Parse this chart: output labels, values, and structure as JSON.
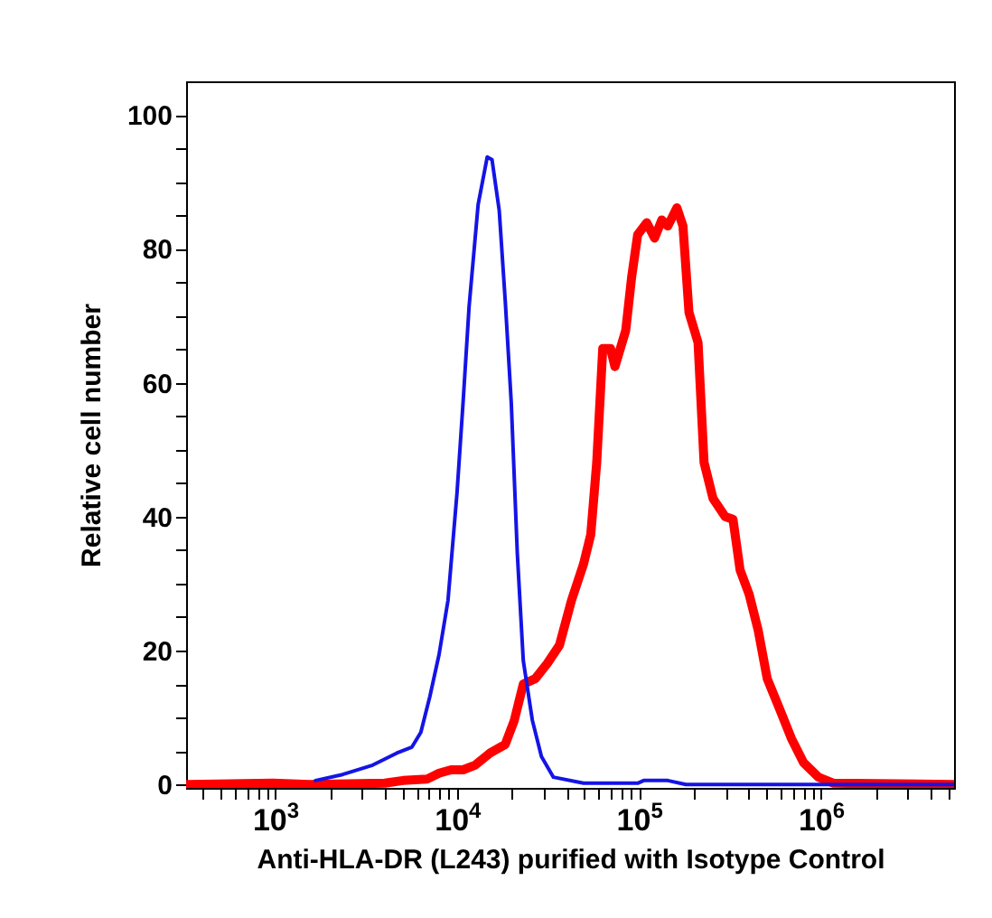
{
  "chart_data": {
    "type": "line",
    "xlabel": "Anti-HLA-DR (L243) purified with Isotype Control",
    "ylabel": "Relative cell number",
    "log": "x",
    "grid": false,
    "legend": false,
    "marker": "none",
    "line_style": "solid",
    "xlim": [
      324,
      5400000
    ],
    "ylim": [
      -0.5,
      105
    ],
    "xticks": [
      {
        "value": 400,
        "label": null
      },
      {
        "value": 500,
        "label": null
      },
      {
        "value": 600,
        "label": null
      },
      {
        "value": 700,
        "label": null
      },
      {
        "value": 800,
        "label": null
      },
      {
        "value": 900,
        "label": null
      },
      {
        "value": 1000,
        "label": "10$^{3}$"
      },
      {
        "value": 2000,
        "label": null
      },
      {
        "value": 3000,
        "label": null
      },
      {
        "value": 4000,
        "label": null
      },
      {
        "value": 5000,
        "label": null
      },
      {
        "value": 6000,
        "label": null
      },
      {
        "value": 7000,
        "label": null
      },
      {
        "value": 8000,
        "label": null
      },
      {
        "value": 9000,
        "label": null
      },
      {
        "value": 10000,
        "label": "10$^{4}$"
      },
      {
        "value": 20000,
        "label": null
      },
      {
        "value": 30000,
        "label": null
      },
      {
        "value": 40000,
        "label": null
      },
      {
        "value": 50000,
        "label": null
      },
      {
        "value": 60000,
        "label": null
      },
      {
        "value": 70000,
        "label": null
      },
      {
        "value": 80000,
        "label": null
      },
      {
        "value": 90000,
        "label": null
      },
      {
        "value": 100000,
        "label": "10$^{5}$"
      },
      {
        "value": 200000,
        "label": null
      },
      {
        "value": 300000,
        "label": null
      },
      {
        "value": 400000,
        "label": null
      },
      {
        "value": 500000,
        "label": null
      },
      {
        "value": 600000,
        "label": null
      },
      {
        "value": 700000,
        "label": null
      },
      {
        "value": 800000,
        "label": null
      },
      {
        "value": 900000,
        "label": null
      },
      {
        "value": 1000000,
        "label": "10$^{6}$"
      },
      {
        "value": 2000000,
        "label": null
      },
      {
        "value": 3000000,
        "label": null
      },
      {
        "value": 4000000,
        "label": null
      },
      {
        "value": 5000000,
        "label": null
      }
    ],
    "yticks": [
      0,
      {
        "value": 5,
        "label": null
      },
      {
        "value": 10,
        "label": null
      },
      {
        "value": 15,
        "label": null
      },
      20,
      {
        "value": 25,
        "label": null
      },
      {
        "value": 30,
        "label": null
      },
      {
        "value": 35,
        "label": null
      },
      40,
      {
        "value": 45,
        "label": null
      },
      {
        "value": 50,
        "label": null
      },
      {
        "value": 55,
        "label": null
      },
      60,
      {
        "value": 65,
        "label": null
      },
      {
        "value": 70,
        "label": null
      },
      {
        "value": 75,
        "label": null
      },
      80,
      {
        "value": 85,
        "label": null
      },
      {
        "value": 90,
        "label": null
      },
      {
        "value": 95,
        "label": null
      },
      100
    ],
    "series": [
      {
        "color": "#ff0000",
        "x": [
          330,
          977,
          1545,
          4009,
          5035,
          6828,
          7962,
          9268,
          10790,
          12560,
          15200,
          18410,
          20650,
          23130,
          26920,
          31390,
          36560,
          42580,
          49570,
          54330,
          58610,
          63240,
          69820,
          73790,
          84590,
          91200,
          98410,
          110400,
          121900,
          133600,
          144200,
          161700,
          174600,
          188400,
          211300,
          228000,
          255500,
          297800,
          328900,
          360000,
          403500,
          452700,
          507200,
          591200,
          688600,
          802100,
          970500,
          1175000,
          5400000
        ],
        "values": [
          0,
          0.2,
          0,
          0.2,
          0.6,
          0.8,
          1.7,
          2.2,
          2.2,
          2.9,
          4.7,
          6.0,
          9.6,
          15,
          15.8,
          18.1,
          20.8,
          27.5,
          32.9,
          37.3,
          48.1,
          65.1,
          65.1,
          62.4,
          67.8,
          75.8,
          82.1,
          83.9,
          81.6,
          84.3,
          83.4,
          86.1,
          83.4,
          70.5,
          66,
          48.1,
          42.7,
          40.0,
          39.6,
          32,
          28.4,
          23,
          15.8,
          11.4,
          6.9,
          3.3,
          1.1,
          0.2,
          0
        ]
      },
      {
        "color": "#1414e6",
        "x": [
          1667,
          2350,
          3436,
          4667,
          5649,
          6324,
          7096,
          7962,
          8919,
          10000,
          10790,
          11650,
          13060,
          14650,
          15570,
          17060,
          18410,
          19870,
          21440,
          23130,
          25940,
          29100,
          33880,
          49570,
          98400,
          106200,
          144200,
          181200,
          5400000
        ],
        "values": [
          0.6,
          1.5,
          2.9,
          4.7,
          5.6,
          7.8,
          13.2,
          19.4,
          27.5,
          43.6,
          57,
          71.4,
          86.6,
          93.7,
          93.3,
          85.7,
          72.2,
          57,
          34.6,
          18.5,
          9.6,
          4.2,
          1.1,
          0.2,
          0.2,
          0.6,
          0.6,
          0,
          0
        ]
      }
    ]
  }
}
